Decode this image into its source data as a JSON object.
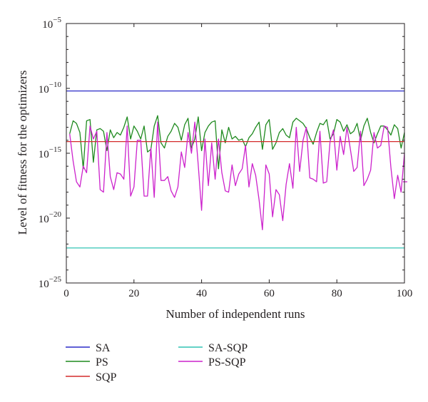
{
  "chart_data": {
    "type": "line",
    "title": "",
    "xlabel": "Number of independent runs",
    "ylabel": "Level of fitness for the optimizers",
    "xlim": [
      0,
      100
    ],
    "ylim_log10": [
      -25,
      -5
    ],
    "yscale": "log",
    "x_ticks": [
      "0",
      "20",
      "40",
      "60",
      "80",
      "100"
    ],
    "y_ticks": [
      {
        "base": "10",
        "exp": "−5"
      },
      {
        "base": "10",
        "exp": "−10"
      },
      {
        "base": "10",
        "exp": "−15"
      },
      {
        "base": "10",
        "exp": "−20"
      },
      {
        "base": "10",
        "exp": "−25"
      }
    ],
    "grid": false,
    "legend_position": "bottom",
    "x": [
      1,
      2,
      3,
      4,
      5,
      6,
      7,
      8,
      9,
      10,
      11,
      12,
      13,
      14,
      15,
      16,
      17,
      18,
      19,
      20,
      21,
      22,
      23,
      24,
      25,
      26,
      27,
      28,
      29,
      30,
      31,
      32,
      33,
      34,
      35,
      36,
      37,
      38,
      39,
      40,
      41,
      42,
      43,
      44,
      45,
      46,
      47,
      48,
      49,
      50,
      51,
      52,
      53,
      54,
      55,
      56,
      57,
      58,
      59,
      60,
      61,
      62,
      63,
      64,
      65,
      66,
      67,
      68,
      69,
      70,
      71,
      72,
      73,
      74,
      75,
      76,
      77,
      78,
      79,
      80,
      81,
      82,
      83,
      84,
      85,
      86,
      87,
      88,
      89,
      90,
      91,
      92,
      93,
      94,
      95,
      96,
      97,
      98,
      99,
      100
    ],
    "series": [
      {
        "name": "SA",
        "color": "#2b2bc8",
        "constant_log10": -10.2
      },
      {
        "name": "PS",
        "color": "#1f8a1f",
        "log10_values": [
          -13.5,
          -12.5,
          -12.7,
          -13.4,
          -16.2,
          -12.5,
          -12.4,
          -15.7,
          -13.2,
          -13.1,
          -13.3,
          -14.8,
          -13.2,
          -13.8,
          -13.4,
          -13.6,
          -13.0,
          -12.2,
          -13.9,
          -12.9,
          -13.3,
          -13.9,
          -12.9,
          -14.9,
          -14.7,
          -12.9,
          -12.1,
          -14.2,
          -14.6,
          -13.7,
          -13.3,
          -12.7,
          -13.0,
          -14.0,
          -12.8,
          -12.3,
          -14.6,
          -13.9,
          -12.2,
          -14.8,
          -13.4,
          -12.9,
          -12.6,
          -12.5,
          -16.2,
          -13.2,
          -14.2,
          -13.0,
          -13.9,
          -13.7,
          -14.0,
          -13.9,
          -14.5,
          -13.8,
          -13.5,
          -13.0,
          -12.6,
          -14.7,
          -12.8,
          -12.4,
          -14.7,
          -14.2,
          -13.4,
          -13.1,
          -13.6,
          -13.8,
          -12.6,
          -12.3,
          -12.5,
          -12.7,
          -13.1,
          -13.8,
          -14.3,
          -13.4,
          -12.7,
          -12.8,
          -12.4,
          -13.9,
          -13.5,
          -12.4,
          -12.6,
          -13.3,
          -12.8,
          -13.5,
          -13.3,
          -12.7,
          -14.0,
          -12.9,
          -12.3,
          -13.4,
          -14.2,
          -13.5,
          -12.9,
          -12.9,
          -13.2,
          -13.6,
          -12.8,
          -13.1,
          -14.6,
          -13.4
        ]
      },
      {
        "name": "SQP",
        "color": "#d42b2b",
        "constant_log10": -14.1
      },
      {
        "name": "SA-SQP",
        "color": "#30c4b4",
        "constant_log10": -22.3
      },
      {
        "name": "PS-SQP",
        "color": "#cc22cc",
        "log10_values": [
          -13.5,
          -15.6,
          -17.2,
          -17.6,
          -16.0,
          -16.5,
          -12.9,
          -13.9,
          -13.3,
          -17.8,
          -18.0,
          -13.4,
          -16.8,
          -17.8,
          -16.5,
          -16.6,
          -17.0,
          -12.9,
          -18.3,
          -17.6,
          -14.0,
          -14.0,
          -18.3,
          -18.3,
          -14.6,
          -18.4,
          -12.6,
          -17.1,
          -17.1,
          -16.8,
          -17.9,
          -18.4,
          -17.6,
          -14.9,
          -16.1,
          -13.4,
          -15.0,
          -12.6,
          -15.9,
          -19.4,
          -13.9,
          -17.5,
          -14.2,
          -17.0,
          -13.9,
          -16.5,
          -17.9,
          -18.0,
          -15.9,
          -17.5,
          -16.6,
          -16.2,
          -14.4,
          -17.6,
          -15.8,
          -16.7,
          -18.6,
          -20.9,
          -15.9,
          -16.6,
          -19.9,
          -17.8,
          -18.2,
          -20.2,
          -17.4,
          -15.8,
          -17.7,
          -13.0,
          -16.4,
          -14.0,
          -13.0,
          -16.9,
          -17.0,
          -17.2,
          -13.3,
          -17.3,
          -17.2,
          -14.1,
          -13.2,
          -16.3,
          -13.7,
          -15.1,
          -13.0,
          -14.7,
          -16.4,
          -16.1,
          -13.3,
          -17.5,
          -17.0,
          -16.3,
          -13.4,
          -14.6,
          -14.4,
          -12.9,
          -13.0,
          -16.1,
          -18.5,
          -16.7,
          -18.0,
          -15.0
        ]
      }
    ],
    "legend": [
      {
        "name": "SA",
        "color": "#2b2bc8"
      },
      {
        "name": "PS",
        "color": "#1f8a1f"
      },
      {
        "name": "SQP",
        "color": "#d42b2b"
      },
      {
        "name": "SA-SQP",
        "color": "#30c4b4"
      },
      {
        "name": "PS-SQP",
        "color": "#cc22cc"
      }
    ],
    "offscale_marker": {
      "series": "PS-SQP",
      "log10": -17.2
    }
  }
}
